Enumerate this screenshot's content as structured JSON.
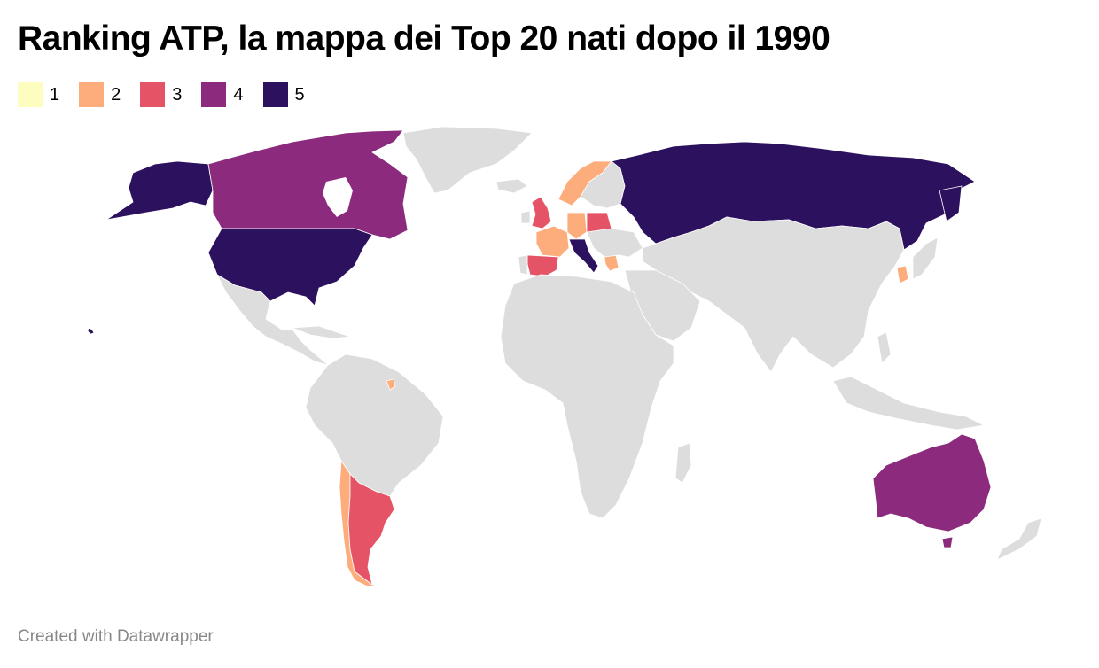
{
  "header": {
    "title": "Ranking ATP, la mappa dei Top 20 nati dopo il 1990"
  },
  "legend": {
    "items": [
      {
        "label": "1",
        "color": "#fcfdbf"
      },
      {
        "label": "2",
        "color": "#fdad7b"
      },
      {
        "label": "3",
        "color": "#e55366"
      },
      {
        "label": "4",
        "color": "#8c2a7e"
      },
      {
        "label": "5",
        "color": "#2c115f"
      }
    ]
  },
  "map": {
    "background_land_color": "#dddddd",
    "border_color": "#ffffff",
    "regions": [
      {
        "name": "Russia",
        "level": 5
      },
      {
        "name": "United States",
        "level": 5
      },
      {
        "name": "Alaska",
        "level": 5
      },
      {
        "name": "Italy",
        "level": 5
      },
      {
        "name": "Canada",
        "level": 4
      },
      {
        "name": "Australia",
        "level": 4
      },
      {
        "name": "Spain",
        "level": 3
      },
      {
        "name": "United Kingdom",
        "level": 3
      },
      {
        "name": "Poland",
        "level": 3
      },
      {
        "name": "Argentina",
        "level": 3
      },
      {
        "name": "Norway",
        "level": 2
      },
      {
        "name": "France",
        "level": 2
      },
      {
        "name": "Germany",
        "level": 2
      },
      {
        "name": "Greece",
        "level": 2
      },
      {
        "name": "Chile",
        "level": 2
      },
      {
        "name": "South Korea",
        "level": 2
      },
      {
        "name": "French Guiana",
        "level": 2
      }
    ]
  },
  "footer": {
    "credit": "Created with Datawrapper"
  }
}
